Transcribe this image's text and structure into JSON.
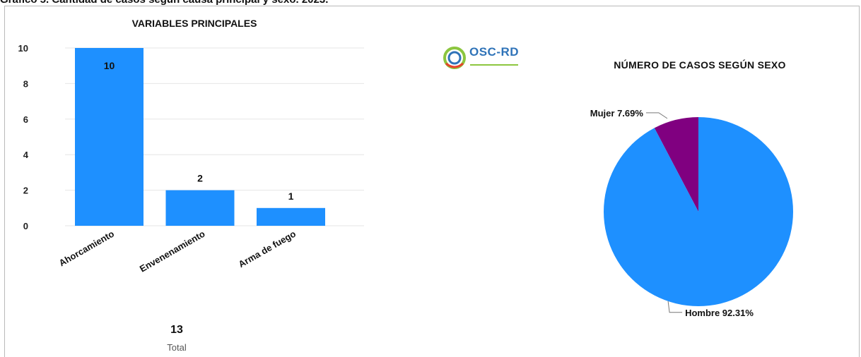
{
  "caption": "Gráfico 5. Cantidad de casos según causa principal y sexo. 2023.",
  "logo": {
    "text": "OSC-RD",
    "colors": [
      "#8cc63f",
      "#2f73b8",
      "#e8412c"
    ]
  },
  "total": {
    "value": "13",
    "label": "Total"
  },
  "chart_data": [
    {
      "type": "bar",
      "title": "VARIABLES PRINCIPALES",
      "categories": [
        "Ahorcamiento",
        "Envenenamiento",
        "Arma de fuego"
      ],
      "values": [
        10,
        2,
        1
      ],
      "data_labels": [
        "10",
        "2",
        "1"
      ],
      "yticks": [
        0,
        2,
        4,
        6,
        8,
        10
      ],
      "ylim": [
        0,
        10
      ],
      "grid": true,
      "color": "#1e90ff"
    },
    {
      "type": "pie",
      "title": "NÚMERO DE CASOS SEGÚN SEXO",
      "slices": [
        {
          "label": "Mujer 7.69%",
          "value": 7.69,
          "color": "#800080"
        },
        {
          "label": "Hombre 92.31%",
          "value": 92.31,
          "color": "#1e90ff"
        }
      ]
    }
  ]
}
